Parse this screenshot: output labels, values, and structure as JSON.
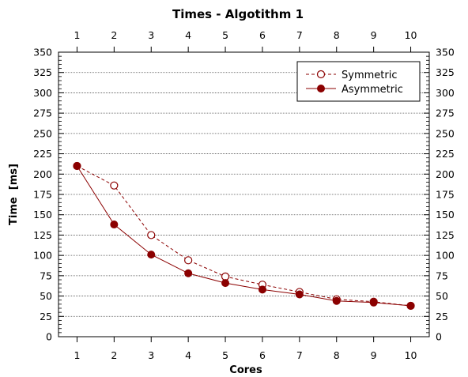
{
  "chart_data": {
    "type": "line",
    "title": "Times - Algotithm 1",
    "xlabel": "Cores",
    "ylabel": "Time  [ms]",
    "x": [
      1,
      2,
      3,
      4,
      5,
      6,
      7,
      8,
      9,
      10
    ],
    "xlim": [
      0.5,
      10.5
    ],
    "ylim": [
      0,
      350
    ],
    "x_ticks": [
      1,
      2,
      3,
      4,
      5,
      6,
      7,
      8,
      9,
      10
    ],
    "y_ticks": [
      0,
      25,
      50,
      75,
      100,
      125,
      150,
      175,
      200,
      225,
      250,
      275,
      300,
      325,
      350
    ],
    "grid": "horizontal dotted",
    "legend_position": "top-right",
    "series": [
      {
        "name": "Symmetric",
        "values": [
          210,
          186,
          125,
          94,
          74,
          64,
          55,
          46,
          43,
          38
        ],
        "color": "#8b0000",
        "line_style": "dashed",
        "marker": "open-circle"
      },
      {
        "name": "Asymmetric",
        "values": [
          210,
          138,
          101,
          78,
          66,
          58,
          52,
          44,
          42,
          38
        ],
        "color": "#8b0000",
        "line_style": "solid",
        "marker": "filled-circle"
      }
    ]
  }
}
